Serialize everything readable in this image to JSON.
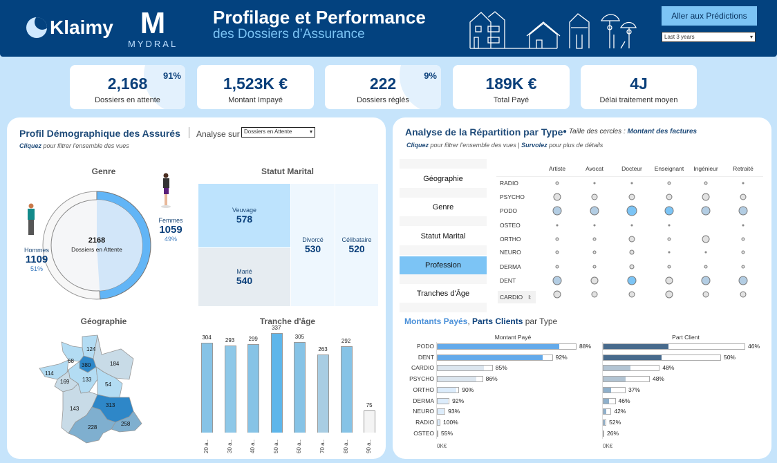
{
  "header": {
    "brand": "Klaimy",
    "partner_logo_letter": "M",
    "partner_logo_text": "MYDRAL",
    "title": "Profilage et Performance",
    "subtitle": "des Dossiers d’Assurance",
    "predictions_button": "Aller aux Prédictions",
    "period_select": "Last 3 years"
  },
  "kpis": [
    {
      "value": "2,168",
      "label": "Dossiers en attente",
      "pct": "91%"
    },
    {
      "value": "1,523K €",
      "label": "Montant Impayé"
    },
    {
      "value": "222",
      "label": "Dossiers réglés",
      "pct": "9%"
    },
    {
      "value": "189K €",
      "label": "Total Payé"
    },
    {
      "value": "4J",
      "label": "Délai traitement moyen"
    }
  ],
  "left": {
    "title": "Profil Démographique des Assurés",
    "analyse_label": "Analyse sur",
    "analyse_select": "Dossiers en Attente",
    "hint_bold": "Cliquez",
    "hint": " pour filtrer l'ensemble des vues",
    "genre": {
      "title": "Genre",
      "total": "2168",
      "total_label": "Dossiers en Attente",
      "hommes_label": "Hommes",
      "hommes": "1109",
      "hommes_pct": "51%",
      "femmes_label": "Femmes",
      "femmes": "1059",
      "femmes_pct": "49%",
      "femmes_share": 0.49
    },
    "marital": {
      "title": "Statut Marital",
      "items": [
        {
          "label": "Veuvage",
          "value": "578"
        },
        {
          "label": "Marié",
          "value": "540"
        },
        {
          "label": "Divorcé",
          "value": "530"
        },
        {
          "label": "Célibataire",
          "value": "520"
        }
      ]
    },
    "geo": {
      "title": "Géographie",
      "values": [
        "124",
        "68",
        "380",
        "184",
        "114",
        "133",
        "169",
        "54",
        "313",
        "143",
        "258",
        "228"
      ]
    },
    "age": {
      "title": "Tranche d'âge",
      "categories": [
        "20 a..",
        "30 a..",
        "40 a..",
        "50 a..",
        "60 a..",
        "70 a..",
        "80 a..",
        "90 a.."
      ],
      "values": [
        304,
        293,
        299,
        337,
        305,
        263,
        292,
        75
      ],
      "colors": [
        "#86c3e6",
        "#8ec8e8",
        "#86c3e6",
        "#5eb6ea",
        "#86c3e6",
        "#a8cde3",
        "#86c3e6",
        "#f4f4f4"
      ]
    }
  },
  "right": {
    "title": "Analyse de la Répartition par Type",
    "size_note": "Taille des cercles : ",
    "size_note_bold": "Montant des factures",
    "hint1_bold": "Cliquez",
    "hint1": " pour filtrer l'ensemble des vues | ",
    "hint2_bold": "Survolez",
    "hint2": " pour plus de détails",
    "nav": [
      "Géographie",
      "Genre",
      "Statut Marital",
      "Profession",
      "Tranches d'Âge"
    ],
    "nav_active": "Profession",
    "columns": [
      "Artiste",
      "Avocat",
      "Docteur",
      "Enseignant",
      "Ingénieur",
      "Retraité"
    ],
    "rows": [
      "RADIO",
      "PSYCHO",
      "PODO",
      "OSTEO",
      "ORTHO",
      "NEURO",
      "DERMA",
      "DENT",
      "CARDIO"
    ],
    "bubble_sizes": [
      [
        2,
        1,
        1,
        2,
        2,
        1
      ],
      [
        5,
        4,
        4,
        4,
        5,
        4
      ],
      [
        6,
        6,
        7,
        6,
        6,
        6
      ],
      [
        1,
        1,
        1,
        1,
        0,
        1
      ],
      [
        2,
        2,
        4,
        2,
        5,
        2
      ],
      [
        2,
        2,
        3,
        1,
        1,
        2
      ],
      [
        2,
        2,
        3,
        2,
        2,
        2
      ],
      [
        6,
        5,
        6,
        5,
        6,
        6
      ],
      [
        5,
        4,
        4,
        5,
        4,
        4
      ]
    ],
    "bubble_colors": [
      [
        "g",
        "g",
        "g",
        "g",
        "g",
        "g"
      ],
      [
        "g",
        "g",
        "g",
        "g",
        "g",
        "g"
      ],
      [
        "l",
        "l",
        "b",
        "b",
        "l",
        "l"
      ],
      [
        "g",
        "g",
        "g",
        "g",
        "g",
        "g"
      ],
      [
        "g",
        "g",
        "g",
        "g",
        "g",
        "g"
      ],
      [
        "g",
        "g",
        "g",
        "g",
        "g",
        "g"
      ],
      [
        "g",
        "g",
        "g",
        "g",
        "g",
        "g"
      ],
      [
        "l",
        "g",
        "b",
        "g",
        "l",
        "l"
      ],
      [
        "g",
        "g",
        "g",
        "g",
        "g",
        "g"
      ]
    ],
    "cardio_icon_label": "Iː",
    "bars": {
      "title_a": "Montants Payés",
      "sep": ", ",
      "title_b": "Parts Clients",
      "title_c": " par Type",
      "paid_header": "Montant Payé",
      "client_header": "Part Client",
      "axis_label": "0K€",
      "rows": [
        "PODO",
        "DENT",
        "CARDIO",
        "PSYCHO",
        "ORTHO",
        "DERMA",
        "NEURO",
        "RADIO",
        "OSTEO"
      ],
      "paid_total_rel": [
        1.0,
        0.83,
        0.4,
        0.33,
        0.16,
        0.09,
        0.06,
        0.025,
        0.01
      ],
      "paid_pct": [
        "88%",
        "92%",
        "85%",
        "86%",
        "90%",
        "92%",
        "93%",
        "100%",
        "55%"
      ],
      "paid_share": [
        0.88,
        0.92,
        0.85,
        0.86,
        0.9,
        0.92,
        0.93,
        1.0,
        0.55
      ],
      "client_pct": [
        "46%",
        "50%",
        "48%",
        "48%",
        "37%",
        "46%",
        "42%",
        "52%",
        "26%"
      ],
      "client_share": [
        0.46,
        0.5,
        0.48,
        0.48,
        0.37,
        0.46,
        0.42,
        0.52,
        0.26
      ],
      "paid_colors": [
        "#64aaea",
        "#64aaea",
        "#dce6ef",
        "#dce6ef",
        "#dcecfb",
        "#dcecfb",
        "#dcecfb",
        "#dcecfb",
        "#aaa"
      ],
      "client_colors": [
        "#476a8c",
        "#476a8c",
        "#b2c4d3",
        "#b2c4d3",
        "#8fb0cb",
        "#8fb0cb",
        "#8fb0cb",
        "#8fb0cb",
        "#aaa"
      ]
    }
  },
  "colors": {
    "header": "#03427f",
    "background": "#c6e4fb",
    "accent": "#7cc4f5",
    "navy": "#0a3f7a"
  }
}
